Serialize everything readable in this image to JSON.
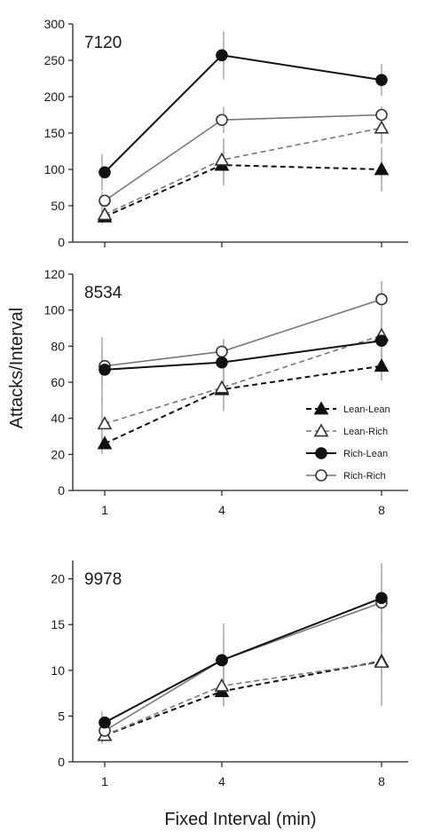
{
  "figure": {
    "ylabel": "Attacks/Interval",
    "xlabel": "Fixed Interval (min)"
  },
  "legend": {
    "position": "middle panel, lower-right",
    "entries": [
      {
        "name": "Lean-Lean",
        "line": "dashed",
        "color": "#111111",
        "marker": "triangle",
        "filled": true
      },
      {
        "name": "Lean-Rich",
        "line": "dashed",
        "color": "#777777",
        "marker": "triangle",
        "filled": false
      },
      {
        "name": "Rich-Lean",
        "line": "solid",
        "color": "#111111",
        "marker": "circle",
        "filled": true
      },
      {
        "name": "Rich-Rich",
        "line": "solid",
        "color": "#777777",
        "marker": "circle",
        "filled": false
      }
    ]
  },
  "chart_data": [
    {
      "type": "line",
      "title": "7120",
      "x": [
        1,
        4,
        8
      ],
      "x_ticks": [
        "1",
        "4",
        "8"
      ],
      "show_x_ticks": false,
      "ylim": [
        0,
        300
      ],
      "y_ticks": [
        0,
        50,
        100,
        150,
        200,
        250,
        300
      ],
      "grid": false,
      "series": [
        {
          "name": "Lean-Lean",
          "values": [
            35,
            106,
            100
          ],
          "err": [
            10,
            28,
            30
          ]
        },
        {
          "name": "Lean-Rich",
          "values": [
            38,
            113,
            157
          ],
          "err": [
            7,
            30,
            22
          ]
        },
        {
          "name": "Rich-Lean",
          "values": [
            96,
            257,
            223
          ],
          "err": [
            25,
            33,
            22
          ]
        },
        {
          "name": "Rich-Rich",
          "values": [
            57,
            168,
            175
          ],
          "err": [
            12,
            18,
            12
          ]
        }
      ]
    },
    {
      "type": "line",
      "title": "8534",
      "x": [
        1,
        4,
        8
      ],
      "x_ticks": [
        "1",
        "4",
        "8"
      ],
      "show_x_ticks": true,
      "ylim": [
        0,
        120
      ],
      "y_ticks": [
        0,
        20,
        40,
        60,
        80,
        100,
        120
      ],
      "grid": false,
      "series": [
        {
          "name": "Lean-Lean",
          "values": [
            26,
            56,
            69
          ],
          "err": [
            6,
            12,
            8
          ]
        },
        {
          "name": "Lean-Rich",
          "values": [
            37,
            57,
            86
          ],
          "err": [
            15,
            12,
            16
          ]
        },
        {
          "name": "Rich-Lean",
          "values": [
            67,
            71,
            83
          ],
          "err": [
            18,
            12,
            14
          ]
        },
        {
          "name": "Rich-Rich",
          "values": [
            69,
            77,
            106
          ],
          "err": [
            11,
            7,
            10
          ]
        }
      ]
    },
    {
      "type": "line",
      "title": "9978",
      "x": [
        1,
        4,
        8
      ],
      "x_ticks": [
        "1",
        "4",
        "8"
      ],
      "show_x_ticks": true,
      "ylim": [
        0,
        22
      ],
      "y_ticks": [
        0,
        5,
        10,
        15,
        20
      ],
      "grid": false,
      "series": [
        {
          "name": "Lean-Lean",
          "values": [
            2.9,
            7.7,
            11.0
          ],
          "err": [
            0.9,
            1.6,
            2.0
          ]
        },
        {
          "name": "Lean-Rich",
          "values": [
            2.9,
            8.3,
            10.9
          ],
          "err": [
            0.8,
            2.2,
            4.8
          ]
        },
        {
          "name": "Rich-Lean",
          "values": [
            4.3,
            11.1,
            17.9
          ],
          "err": [
            1.2,
            1.8,
            3.8
          ]
        },
        {
          "name": "Rich-Rich",
          "values": [
            3.4,
            11.1,
            17.4
          ],
          "err": [
            0.9,
            4.0,
            3.3
          ]
        }
      ]
    }
  ]
}
